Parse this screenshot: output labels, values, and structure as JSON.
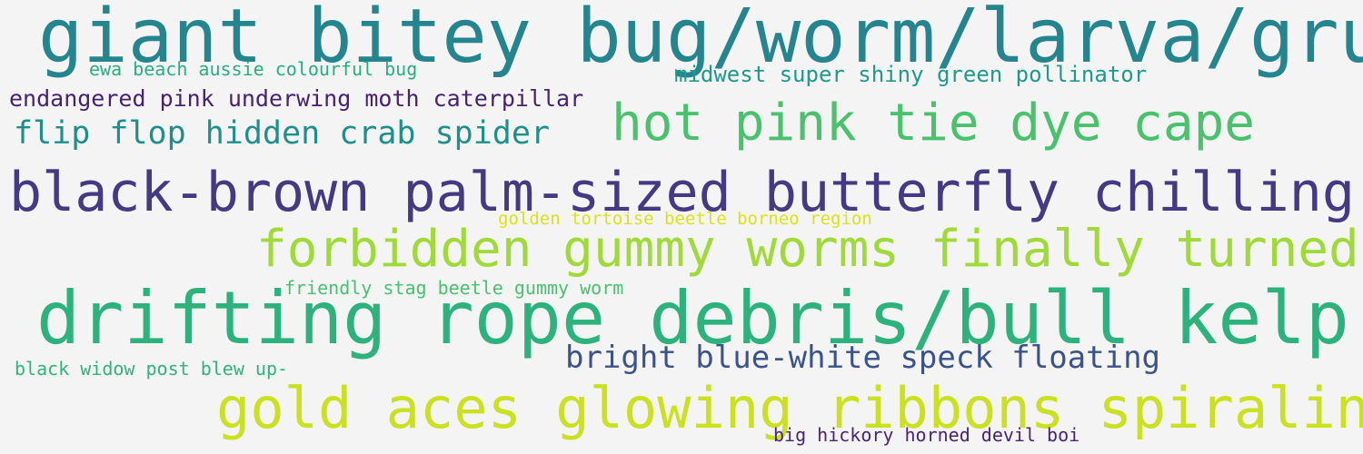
{
  "phrases": [
    {
      "id": "p1",
      "text": "giant bitey bug/worm/larva/grub",
      "color": "#25858e"
    },
    {
      "id": "s1",
      "text": "ewa beach aussie colourful bug",
      "color": "#28ae80"
    },
    {
      "id": "s2",
      "text": "midwest super shiny green pollinator",
      "color": "#1f9a8a"
    },
    {
      "id": "s3",
      "text": "endangered pink underwing moth caterpillar",
      "color": "#482173"
    },
    {
      "id": "p3",
      "text": "flip flop hidden crab spider",
      "color": "#1f8f8c"
    },
    {
      "id": "p4",
      "text": "hot pink tie dye cape",
      "color": "#4ac16d"
    },
    {
      "id": "p5",
      "text": "black-brown palm-sized butterfly chilling",
      "color": "#443983"
    },
    {
      "id": "s4",
      "text": "golden tortoise beetle borneo region",
      "color": "#dae319"
    },
    {
      "id": "p6",
      "text": "forbidden gummy worms finally turned",
      "color": "#a0da39"
    },
    {
      "id": "s5",
      "text": "friendly stag beetle gummy worm",
      "color": "#4ac16d"
    },
    {
      "id": "p7",
      "text": "drifting rope debris/bull kelp",
      "color": "#2db27d"
    },
    {
      "id": "p8",
      "text": "bright blue-white speck floating",
      "color": "#3b528b"
    },
    {
      "id": "s6",
      "text": "black widow post blew up-",
      "color": "#2fb47c"
    },
    {
      "id": "p9",
      "text": "gold aces glowing ribbons spiraling",
      "color": "#cae11f"
    },
    {
      "id": "s7",
      "text": "big hickory horned devil boi",
      "color": "#482475"
    }
  ]
}
